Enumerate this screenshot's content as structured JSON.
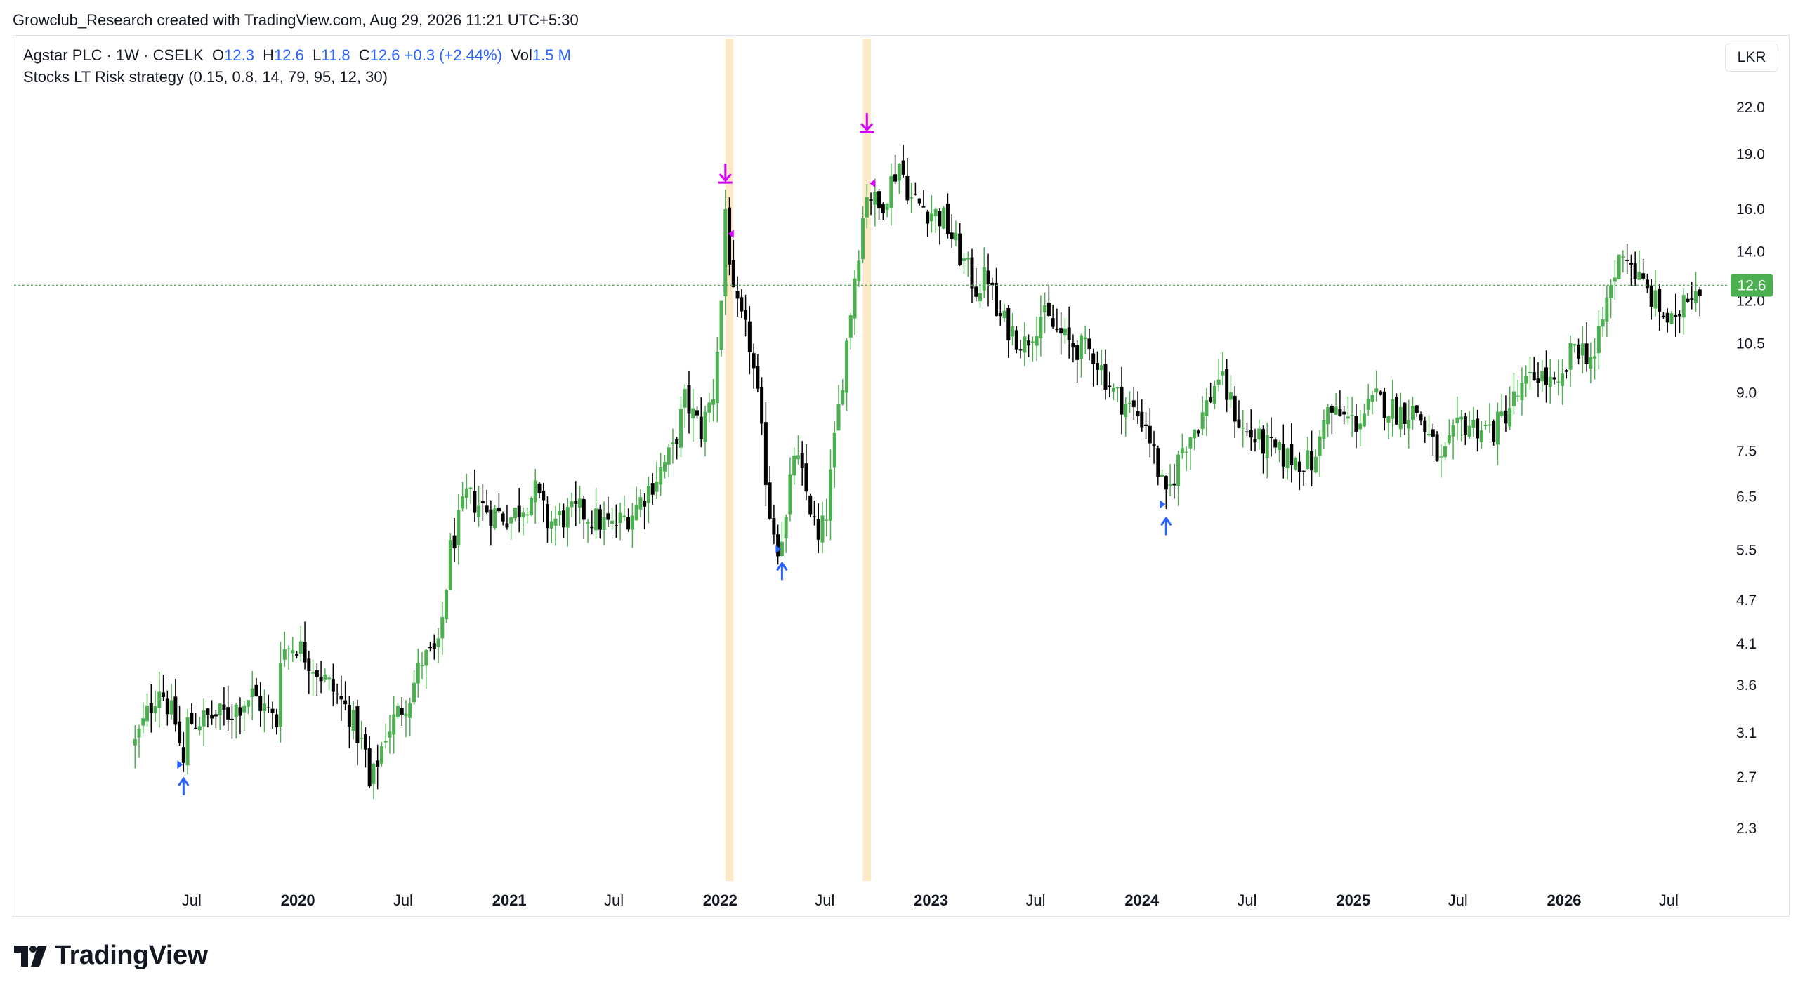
{
  "header": {
    "credit": "Growclub_Research created with TradingView.com, Aug 29, 2026 11:21 UTC+5:30"
  },
  "legend": {
    "symbol": "Agstar PLC · 1W · CSELK",
    "o_label": "O",
    "o_value": "12.3",
    "h_label": "H",
    "h_value": "12.6",
    "l_label": "L",
    "l_value": "11.8",
    "c_label": "C",
    "c_value": "12.6",
    "change": "+0.3 (+2.44%)",
    "vol_label": "Vol",
    "vol_value": "1.5 M",
    "strategy": "Stocks LT Risk strategy (0.15, 0.8, 14, 79, 95, 12, 30)"
  },
  "currency": "LKR",
  "last_price_label": "12.6",
  "footer": {
    "logo_text": "TradingView"
  },
  "colors": {
    "up": "#4caf50",
    "down": "#000000",
    "buy_signal": "#2962ff",
    "sell_signal": "#d500f9",
    "highlight": "#fde8c8",
    "price_line": "#4caf50",
    "text": "#131722"
  },
  "chart_data": {
    "type": "candlestick",
    "interval": "1W",
    "scale": "log",
    "y_ticks": [
      22.0,
      19.0,
      16.0,
      14.0,
      12.0,
      10.5,
      9.0,
      7.5,
      6.5,
      5.5,
      4.7,
      4.1,
      3.6,
      3.1,
      2.7,
      2.3
    ],
    "x_ticks": [
      {
        "label": "Jul",
        "date": "2019-07-01",
        "bold": false
      },
      {
        "label": "2020",
        "date": "2020-01-01",
        "bold": true
      },
      {
        "label": "Jul",
        "date": "2020-07-01",
        "bold": false
      },
      {
        "label": "2021",
        "date": "2021-01-01",
        "bold": true
      },
      {
        "label": "Jul",
        "date": "2021-07-01",
        "bold": false
      },
      {
        "label": "2022",
        "date": "2022-01-01",
        "bold": true
      },
      {
        "label": "Jul",
        "date": "2022-07-01",
        "bold": false
      },
      {
        "label": "2023",
        "date": "2023-01-01",
        "bold": true
      },
      {
        "label": "Jul",
        "date": "2023-07-01",
        "bold": false
      },
      {
        "label": "2024",
        "date": "2024-01-01",
        "bold": true
      },
      {
        "label": "Jul",
        "date": "2024-07-01",
        "bold": false
      },
      {
        "label": "2025",
        "date": "2025-01-01",
        "bold": true
      },
      {
        "label": "Jul",
        "date": "2025-07-01",
        "bold": false
      },
      {
        "label": "2026",
        "date": "2026-01-01",
        "bold": true
      },
      {
        "label": "Jul",
        "date": "2026-07-01",
        "bold": false
      }
    ],
    "last_price": 12.6,
    "price_path": [
      [
        "2019-03-25",
        3.0
      ],
      [
        "2019-05-06",
        3.6
      ],
      [
        "2019-06-03",
        3.2
      ],
      [
        "2019-06-17",
        2.8
      ],
      [
        "2019-06-24",
        3.2
      ],
      [
        "2019-09-02",
        3.3
      ],
      [
        "2019-10-14",
        3.5
      ],
      [
        "2019-11-25",
        3.2
      ],
      [
        "2019-12-02",
        4.0
      ],
      [
        "2019-12-30",
        4.1
      ],
      [
        "2020-02-24",
        3.6
      ],
      [
        "2020-03-30",
        3.3
      ],
      [
        "2020-04-27",
        2.9
      ],
      [
        "2020-05-04",
        2.6
      ],
      [
        "2020-06-01",
        3.1
      ],
      [
        "2020-07-13",
        3.5
      ],
      [
        "2020-08-03",
        3.9
      ],
      [
        "2020-08-31",
        4.0
      ],
      [
        "2020-09-21",
        5.5
      ],
      [
        "2020-10-19",
        6.5
      ],
      [
        "2020-11-30",
        6.2
      ],
      [
        "2021-01-04",
        6.1
      ],
      [
        "2021-02-15",
        6.6
      ],
      [
        "2021-03-08",
        6.0
      ],
      [
        "2021-05-03",
        6.2
      ],
      [
        "2021-06-28",
        5.9
      ],
      [
        "2021-08-02",
        6.2
      ],
      [
        "2021-09-06",
        6.8
      ],
      [
        "2021-10-11",
        7.5
      ],
      [
        "2021-11-01",
        8.8
      ],
      [
        "2021-11-29",
        8.0
      ],
      [
        "2021-12-20",
        9.0
      ],
      [
        "2022-01-03",
        12.0
      ],
      [
        "2022-01-10",
        16.0
      ],
      [
        "2022-01-24",
        12.0
      ],
      [
        "2022-02-21",
        10.5
      ],
      [
        "2022-03-07",
        8.8
      ],
      [
        "2022-03-28",
        6.2
      ],
      [
        "2022-04-11",
        5.6
      ],
      [
        "2022-04-25",
        6.0
      ],
      [
        "2022-05-09",
        7.5
      ],
      [
        "2022-06-06",
        6.3
      ],
      [
        "2022-06-20",
        5.6
      ],
      [
        "2022-07-04",
        6.2
      ],
      [
        "2022-08-01",
        9.5
      ],
      [
        "2022-08-22",
        13.0
      ],
      [
        "2022-09-12",
        17.0
      ],
      [
        "2022-10-03",
        16.0
      ],
      [
        "2022-11-07",
        18.5
      ],
      [
        "2022-11-28",
        16.5
      ],
      [
        "2023-01-23",
        15.5
      ],
      [
        "2023-02-27",
        13.5
      ],
      [
        "2023-03-20",
        12.5
      ],
      [
        "2023-04-10",
        13.0
      ],
      [
        "2023-04-24",
        11.5
      ],
      [
        "2023-06-12",
        10.5
      ],
      [
        "2023-07-10",
        11.5
      ],
      [
        "2023-08-28",
        10.5
      ],
      [
        "2023-10-09",
        10.2
      ],
      [
        "2023-11-13",
        9.0
      ],
      [
        "2024-01-08",
        8.2
      ],
      [
        "2024-02-12",
        6.4
      ],
      [
        "2024-03-11",
        7.6
      ],
      [
        "2024-04-15",
        8.4
      ],
      [
        "2024-05-13",
        9.5
      ],
      [
        "2024-06-24",
        8.0
      ],
      [
        "2024-08-26",
        7.4
      ],
      [
        "2024-10-28",
        7.2
      ],
      [
        "2024-11-11",
        8.5
      ],
      [
        "2025-01-06",
        8.2
      ],
      [
        "2025-02-10",
        8.8
      ],
      [
        "2025-03-17",
        8.5
      ],
      [
        "2025-04-21",
        8.5
      ],
      [
        "2025-06-02",
        7.2
      ],
      [
        "2025-07-07",
        8.2
      ],
      [
        "2025-09-01",
        8.0
      ],
      [
        "2025-10-06",
        8.8
      ],
      [
        "2025-11-17",
        9.6
      ],
      [
        "2025-12-22",
        9.0
      ],
      [
        "2026-01-19",
        10.5
      ],
      [
        "2026-02-23",
        10.0
      ],
      [
        "2026-03-16",
        12.0
      ],
      [
        "2026-04-13",
        14.2
      ],
      [
        "2026-05-11",
        12.8
      ],
      [
        "2026-06-22",
        11.5
      ],
      [
        "2026-07-13",
        11.0
      ],
      [
        "2026-07-27",
        12.3
      ],
      [
        "2026-08-24",
        12.6
      ]
    ],
    "highlight_bands": [
      {
        "start": "2022-01-10",
        "end": "2022-01-24"
      },
      {
        "start": "2022-09-05",
        "end": "2022-09-19"
      }
    ],
    "buy_signals": [
      {
        "date": "2019-06-17",
        "price": 2.7
      },
      {
        "date": "2022-04-18",
        "price": 5.3
      },
      {
        "date": "2024-02-12",
        "price": 6.1
      }
    ],
    "sell_signals": [
      {
        "date": "2022-01-10",
        "price": 17.5
      },
      {
        "date": "2022-09-12",
        "price": 20.5
      }
    ]
  }
}
